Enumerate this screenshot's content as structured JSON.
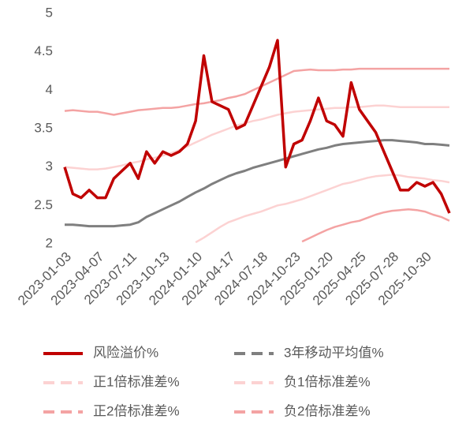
{
  "chart_data": {
    "type": "line",
    "categories": [
      "2023-01-03",
      null,
      null,
      null,
      "2023-04-07",
      null,
      null,
      null,
      "2023-07-11",
      null,
      null,
      null,
      "2023-10-13",
      null,
      null,
      null,
      "2024-01-10",
      null,
      null,
      null,
      "2024-04-17",
      null,
      null,
      null,
      "2024-07-18",
      null,
      null,
      null,
      "2024-10-23",
      null,
      null,
      null,
      "2025-01-20",
      null,
      null,
      null,
      "2025-04-25",
      null,
      null,
      null,
      "2025-07-28",
      null,
      null,
      null,
      "2025-10-30",
      null,
      null,
      null
    ],
    "ylim": [
      2,
      5
    ],
    "yticks": [
      2,
      2.5,
      3,
      3.5,
      4,
      4.5,
      5
    ],
    "grid": false,
    "legend": "bottom",
    "series": [
      {
        "name": "风险溢价%",
        "color": "#c00000",
        "style": "solid",
        "values": [
          3.0,
          2.65,
          2.6,
          2.7,
          2.6,
          2.6,
          2.85,
          2.95,
          3.05,
          2.85,
          3.2,
          3.05,
          3.2,
          3.15,
          3.2,
          3.3,
          3.6,
          4.45,
          3.85,
          3.8,
          3.75,
          3.5,
          3.55,
          3.8,
          4.05,
          4.3,
          4.65,
          3.0,
          3.3,
          3.35,
          3.6,
          3.9,
          3.6,
          3.55,
          3.4,
          4.1,
          3.75,
          3.6,
          3.45,
          3.2,
          2.95,
          2.7,
          2.7,
          2.8,
          2.75,
          2.8,
          2.65,
          2.4
        ]
      },
      {
        "name": "3年移动平均值%",
        "color": "#7f7f7f",
        "style": "dashed",
        "values": [
          2.25,
          2.25,
          2.24,
          2.23,
          2.23,
          2.23,
          2.23,
          2.24,
          2.25,
          2.28,
          2.35,
          2.4,
          2.45,
          2.5,
          2.55,
          2.61,
          2.67,
          2.72,
          2.78,
          2.83,
          2.88,
          2.92,
          2.95,
          2.99,
          3.02,
          3.05,
          3.08,
          3.11,
          3.14,
          3.17,
          3.2,
          3.23,
          3.25,
          3.28,
          3.3,
          3.31,
          3.32,
          3.33,
          3.34,
          3.35,
          3.35,
          3.34,
          3.33,
          3.32,
          3.3,
          3.3,
          3.29,
          3.28
        ]
      },
      {
        "name": "正1倍标准差%",
        "color": "#fcd2d2",
        "style": "dashed",
        "values": [
          3.0,
          2.99,
          2.98,
          2.97,
          2.97,
          2.98,
          3.0,
          3.02,
          3.05,
          3.07,
          3.1,
          3.12,
          3.15,
          3.18,
          3.22,
          3.27,
          3.32,
          3.37,
          3.42,
          3.46,
          3.5,
          3.54,
          3.57,
          3.6,
          3.62,
          3.65,
          3.68,
          3.7,
          3.72,
          3.73,
          3.74,
          3.75,
          3.76,
          3.77,
          3.77,
          3.78,
          3.78,
          3.79,
          3.8,
          3.8,
          3.79,
          3.78,
          3.78,
          3.78,
          3.78,
          3.78,
          3.78,
          3.78
        ]
      },
      {
        "name": "负1倍标准差%",
        "color": "#fcd2d2",
        "style": "dashed",
        "values": [
          null,
          null,
          null,
          null,
          null,
          null,
          null,
          null,
          null,
          null,
          null,
          null,
          null,
          null,
          null,
          null,
          2.02,
          2.08,
          2.15,
          2.22,
          2.28,
          2.32,
          2.36,
          2.39,
          2.42,
          2.46,
          2.5,
          2.52,
          2.55,
          2.58,
          2.62,
          2.66,
          2.7,
          2.74,
          2.78,
          2.8,
          2.83,
          2.86,
          2.88,
          2.89,
          2.9,
          2.89,
          2.87,
          2.86,
          2.85,
          2.83,
          2.82,
          2.8
        ]
      },
      {
        "name": "正2倍标准差%",
        "color": "#f4a3a3",
        "style": "dashed",
        "values": [
          3.73,
          3.74,
          3.73,
          3.72,
          3.72,
          3.7,
          3.68,
          3.7,
          3.72,
          3.74,
          3.75,
          3.76,
          3.77,
          3.77,
          3.78,
          3.8,
          3.82,
          3.83,
          3.85,
          3.87,
          3.9,
          3.92,
          3.95,
          4.0,
          4.05,
          4.1,
          4.15,
          4.2,
          4.25,
          4.26,
          4.27,
          4.26,
          4.26,
          4.26,
          4.27,
          4.27,
          4.28,
          4.28,
          4.28,
          4.28,
          4.28,
          4.28,
          4.28,
          4.28,
          4.28,
          4.28,
          4.28,
          4.28
        ]
      },
      {
        "name": "负2倍标准差%",
        "color": "#f4a3a3",
        "style": "dashed",
        "values": [
          null,
          null,
          null,
          null,
          null,
          null,
          null,
          null,
          null,
          null,
          null,
          null,
          null,
          null,
          null,
          null,
          null,
          null,
          null,
          null,
          null,
          null,
          null,
          null,
          null,
          null,
          null,
          null,
          null,
          2.03,
          2.08,
          2.13,
          2.18,
          2.22,
          2.25,
          2.28,
          2.3,
          2.34,
          2.38,
          2.41,
          2.43,
          2.44,
          2.45,
          2.44,
          2.42,
          2.38,
          2.35,
          2.3
        ]
      }
    ]
  }
}
